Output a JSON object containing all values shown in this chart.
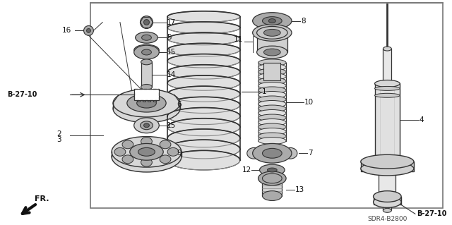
{
  "bg_color": "#ffffff",
  "line_color": "#333333",
  "diagram_code": "SDR4–B2800",
  "ref_code": "B-27-10"
}
